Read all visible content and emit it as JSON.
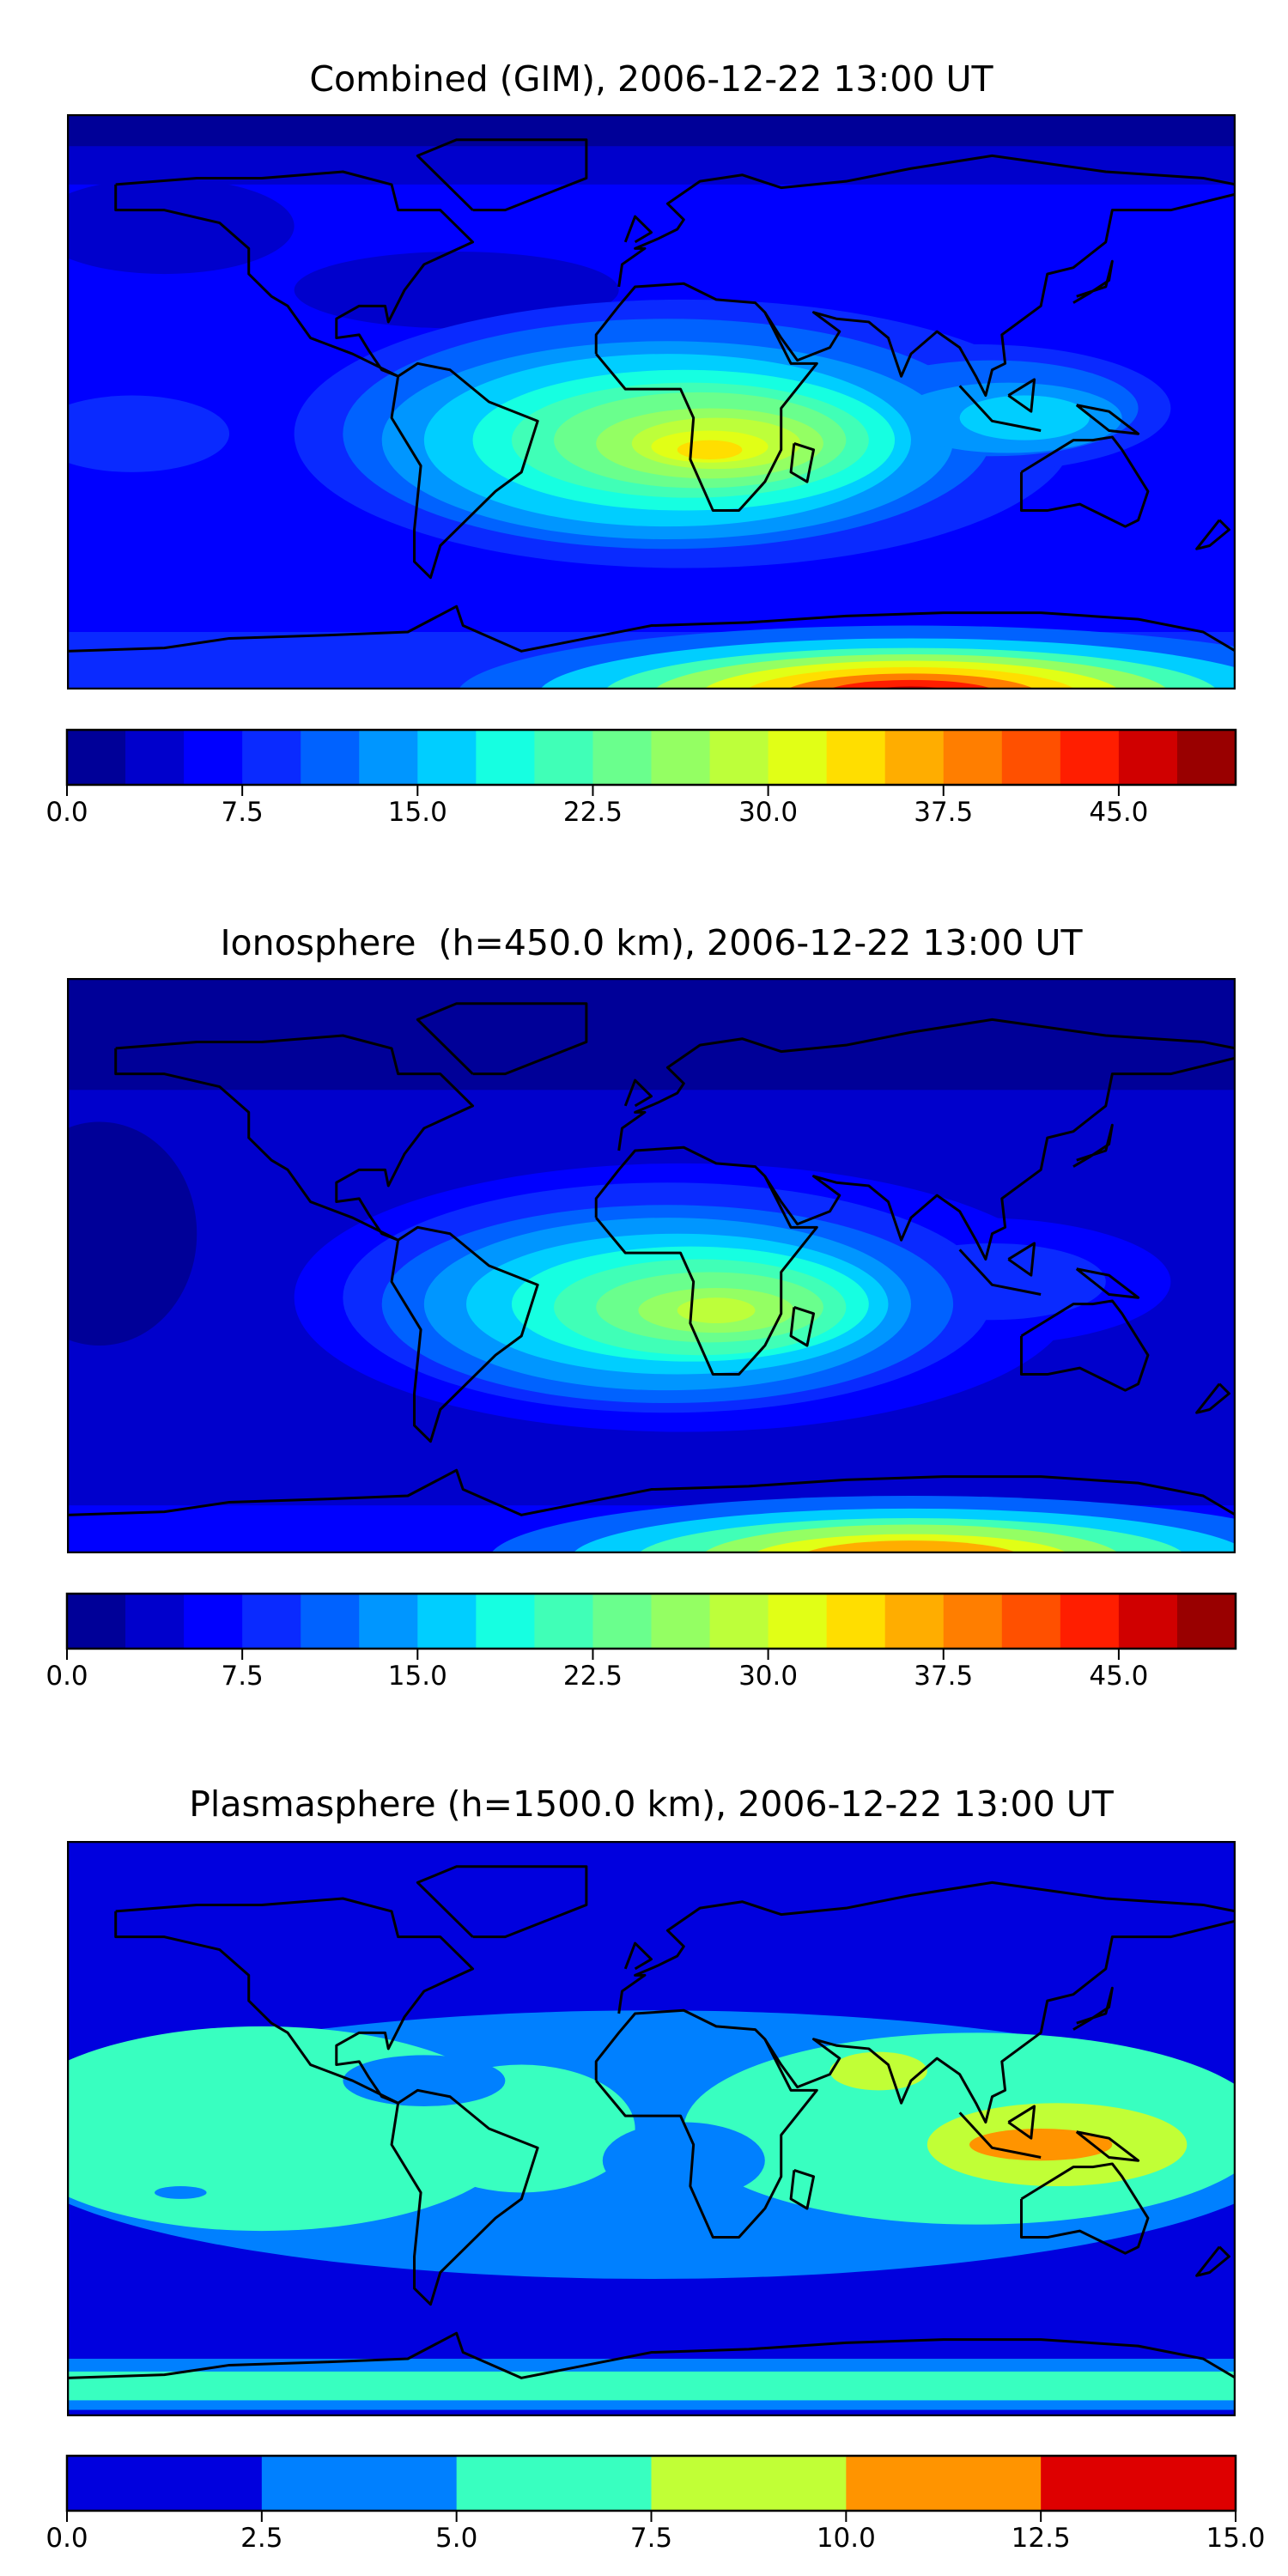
{
  "chart_data": [
    {
      "type": "heatmap",
      "title": "Combined (GIM), 2006-12-22 13:00 UT",
      "projection": "equirectangular",
      "lon_range": [
        -180,
        180
      ],
      "lat_range": [
        -90,
        90
      ],
      "colorbar": {
        "vmin": 0.0,
        "vmax": 50.0,
        "step": 2.5,
        "ticks": [
          "0.0",
          "7.5",
          "15.0",
          "22.5",
          "30.0",
          "37.5",
          "45.0"
        ],
        "tick_values": [
          0,
          7.5,
          15,
          22.5,
          30,
          37.5,
          45
        ],
        "colors": [
          "#000098",
          "#0000cc",
          "#0000ff",
          "#0a2aff",
          "#0062ff",
          "#0096ff",
          "#00ceff",
          "#16ffe1",
          "#40ffb7",
          "#6aff8d",
          "#94ff63",
          "#bdff3a",
          "#e1ff16",
          "#ffde00",
          "#ffad00",
          "#ff7e00",
          "#ff5000",
          "#ff1e00",
          "#d00000",
          "#990000"
        ]
      }
    },
    {
      "type": "heatmap",
      "title": "Ionosphere  (h=450.0 km), 2006-12-22 13:00 UT",
      "projection": "equirectangular",
      "lon_range": [
        -180,
        180
      ],
      "lat_range": [
        -90,
        90
      ],
      "colorbar": {
        "vmin": 0.0,
        "vmax": 50.0,
        "step": 2.5,
        "ticks": [
          "0.0",
          "7.5",
          "15.0",
          "22.5",
          "30.0",
          "37.5",
          "45.0"
        ],
        "tick_values": [
          0,
          7.5,
          15,
          22.5,
          30,
          37.5,
          45
        ],
        "colors": [
          "#000098",
          "#0000cc",
          "#0000ff",
          "#0a2aff",
          "#0062ff",
          "#0096ff",
          "#00ceff",
          "#16ffe1",
          "#40ffb7",
          "#6aff8d",
          "#94ff63",
          "#bdff3a",
          "#e1ff16",
          "#ffde00",
          "#ffad00",
          "#ff7e00",
          "#ff5000",
          "#ff1e00",
          "#d00000",
          "#990000"
        ]
      }
    },
    {
      "type": "heatmap",
      "title": "Plasmasphere (h=1500.0 km), 2006-12-22 13:00 UT",
      "projection": "equirectangular",
      "lon_range": [
        -180,
        180
      ],
      "lat_range": [
        -90,
        90
      ],
      "colorbar": {
        "vmin": 0.0,
        "vmax": 15.0,
        "step": 2.5,
        "ticks": [
          "0.0",
          "2.5",
          "5.0",
          "7.5",
          "10.0",
          "12.5",
          "15.0"
        ],
        "tick_values": [
          0,
          2.5,
          5,
          7.5,
          10,
          12.5,
          15
        ],
        "colors": [
          "#0000de",
          "#0080ff",
          "#38ffc0",
          "#c1ff36",
          "#ff9400",
          "#de0000"
        ]
      }
    }
  ]
}
